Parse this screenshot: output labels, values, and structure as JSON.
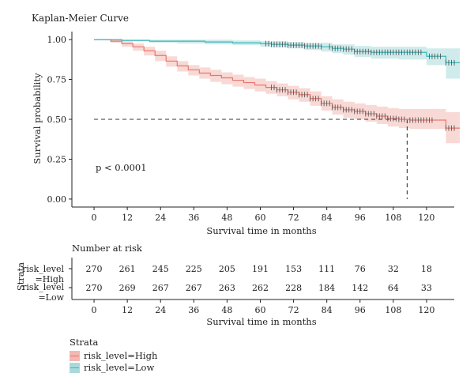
{
  "chart_data": [
    {
      "type": "line",
      "subtype": "kaplan-meier",
      "title": "Kaplan-Meier Curve",
      "xlabel": "Survival time in months",
      "ylabel": "Survival probability",
      "xlim": [
        -8,
        130
      ],
      "ylim": [
        -0.05,
        1.05
      ],
      "x_ticks": [
        0,
        12,
        24,
        36,
        48,
        60,
        72,
        84,
        96,
        108,
        120
      ],
      "y_ticks": [
        0.0,
        0.25,
        0.5,
        0.75,
        1.0
      ],
      "y_tick_labels": [
        "0.00",
        "0.25",
        "0.50",
        "0.75",
        "1.00"
      ],
      "annotation": "p < 0.0001",
      "median_line": {
        "y": 0.5,
        "x": 113
      },
      "grid": false,
      "series": [
        {
          "name": "risk_level=High",
          "color": "#E8776D",
          "ci_color": "#F2B9B2",
          "points": [
            [
              0,
              1.0
            ],
            [
              6,
              0.99
            ],
            [
              10,
              0.975
            ],
            [
              14,
              0.955
            ],
            [
              18,
              0.93
            ],
            [
              22,
              0.9
            ],
            [
              26,
              0.865
            ],
            [
              30,
              0.835
            ],
            [
              34,
              0.81
            ],
            [
              38,
              0.79
            ],
            [
              42,
              0.775
            ],
            [
              46,
              0.76
            ],
            [
              50,
              0.745
            ],
            [
              54,
              0.73
            ],
            [
              58,
              0.715
            ],
            [
              62,
              0.7
            ],
            [
              66,
              0.685
            ],
            [
              70,
              0.67
            ],
            [
              74,
              0.655
            ],
            [
              78,
              0.63
            ],
            [
              82,
              0.6
            ],
            [
              86,
              0.575
            ],
            [
              90,
              0.56
            ],
            [
              94,
              0.55
            ],
            [
              98,
              0.535
            ],
            [
              102,
              0.52
            ],
            [
              106,
              0.505
            ],
            [
              110,
              0.5
            ],
            [
              114,
              0.495
            ],
            [
              118,
              0.495
            ],
            [
              122,
              0.495
            ],
            [
              127,
              0.445
            ],
            [
              132,
              0.445
            ]
          ],
          "ci_upper": [
            [
              0,
              1.0
            ],
            [
              6,
              1.0
            ],
            [
              10,
              0.99
            ],
            [
              14,
              0.975
            ],
            [
              18,
              0.955
            ],
            [
              22,
              0.93
            ],
            [
              26,
              0.895
            ],
            [
              30,
              0.865
            ],
            [
              34,
              0.84
            ],
            [
              38,
              0.825
            ],
            [
              42,
              0.81
            ],
            [
              46,
              0.795
            ],
            [
              50,
              0.78
            ],
            [
              54,
              0.765
            ],
            [
              58,
              0.755
            ],
            [
              62,
              0.74
            ],
            [
              66,
              0.725
            ],
            [
              70,
              0.71
            ],
            [
              74,
              0.695
            ],
            [
              78,
              0.675
            ],
            [
              82,
              0.645
            ],
            [
              86,
              0.625
            ],
            [
              90,
              0.61
            ],
            [
              94,
              0.6
            ],
            [
              98,
              0.59
            ],
            [
              102,
              0.58
            ],
            [
              106,
              0.57
            ],
            [
              110,
              0.565
            ],
            [
              114,
              0.565
            ],
            [
              118,
              0.565
            ],
            [
              122,
              0.565
            ],
            [
              127,
              0.545
            ],
            [
              132,
              0.545
            ]
          ],
          "ci_lower": [
            [
              0,
              1.0
            ],
            [
              6,
              0.98
            ],
            [
              10,
              0.955
            ],
            [
              14,
              0.93
            ],
            [
              18,
              0.9
            ],
            [
              22,
              0.865
            ],
            [
              26,
              0.83
            ],
            [
              30,
              0.8
            ],
            [
              34,
              0.775
            ],
            [
              38,
              0.755
            ],
            [
              42,
              0.735
            ],
            [
              46,
              0.72
            ],
            [
              50,
              0.705
            ],
            [
              54,
              0.69
            ],
            [
              58,
              0.675
            ],
            [
              62,
              0.66
            ],
            [
              66,
              0.645
            ],
            [
              70,
              0.625
            ],
            [
              74,
              0.61
            ],
            [
              78,
              0.585
            ],
            [
              82,
              0.555
            ],
            [
              86,
              0.53
            ],
            [
              90,
              0.51
            ],
            [
              94,
              0.5
            ],
            [
              98,
              0.485
            ],
            [
              102,
              0.47
            ],
            [
              106,
              0.455
            ],
            [
              110,
              0.445
            ],
            [
              114,
              0.44
            ],
            [
              118,
              0.44
            ],
            [
              122,
              0.44
            ],
            [
              127,
              0.35
            ],
            [
              132,
              0.35
            ]
          ],
          "censor_x": [
            64,
            65,
            66,
            67,
            68,
            69,
            70,
            71,
            72,
            73,
            74,
            75,
            76,
            77,
            78,
            79,
            80,
            81,
            82,
            83,
            84,
            85,
            86,
            87,
            88,
            89,
            90,
            91,
            92,
            93,
            94,
            95,
            96,
            97,
            98,
            99,
            100,
            101,
            102,
            103,
            104,
            105,
            106,
            107,
            108,
            109,
            110,
            111,
            112,
            114,
            115,
            116,
            117,
            118,
            119,
            120,
            121,
            122,
            127,
            128,
            129,
            130
          ]
        },
        {
          "name": "risk_level=Low",
          "color": "#3BB5B8",
          "ci_color": "#A9DADB",
          "points": [
            [
              0,
              1.0
            ],
            [
              10,
              0.995
            ],
            [
              20,
              0.99
            ],
            [
              30,
              0.99
            ],
            [
              40,
              0.985
            ],
            [
              50,
              0.98
            ],
            [
              60,
              0.975
            ],
            [
              64,
              0.97
            ],
            [
              70,
              0.965
            ],
            [
              76,
              0.96
            ],
            [
              82,
              0.955
            ],
            [
              86,
              0.945
            ],
            [
              90,
              0.94
            ],
            [
              94,
              0.925
            ],
            [
              100,
              0.92
            ],
            [
              110,
              0.92
            ],
            [
              118,
              0.92
            ],
            [
              120,
              0.895
            ],
            [
              126,
              0.895
            ],
            [
              127,
              0.855
            ],
            [
              132,
              0.855
            ]
          ],
          "ci_upper": [
            [
              0,
              1.0
            ],
            [
              10,
              1.0
            ],
            [
              20,
              1.0
            ],
            [
              30,
              1.0
            ],
            [
              40,
              1.0
            ],
            [
              50,
              0.995
            ],
            [
              60,
              0.99
            ],
            [
              64,
              0.99
            ],
            [
              70,
              0.985
            ],
            [
              76,
              0.98
            ],
            [
              82,
              0.98
            ],
            [
              86,
              0.97
            ],
            [
              90,
              0.97
            ],
            [
              94,
              0.96
            ],
            [
              100,
              0.955
            ],
            [
              110,
              0.955
            ],
            [
              118,
              0.955
            ],
            [
              120,
              0.945
            ],
            [
              126,
              0.945
            ],
            [
              127,
              0.945
            ],
            [
              132,
              0.945
            ]
          ],
          "ci_lower": [
            [
              0,
              1.0
            ],
            [
              10,
              0.99
            ],
            [
              20,
              0.98
            ],
            [
              30,
              0.975
            ],
            [
              40,
              0.97
            ],
            [
              50,
              0.965
            ],
            [
              60,
              0.955
            ],
            [
              64,
              0.95
            ],
            [
              70,
              0.945
            ],
            [
              76,
              0.935
            ],
            [
              82,
              0.925
            ],
            [
              86,
              0.915
            ],
            [
              90,
              0.905
            ],
            [
              94,
              0.89
            ],
            [
              100,
              0.88
            ],
            [
              110,
              0.875
            ],
            [
              118,
              0.875
            ],
            [
              120,
              0.84
            ],
            [
              126,
              0.84
            ],
            [
              127,
              0.755
            ],
            [
              132,
              0.755
            ]
          ],
          "censor_x": [
            62,
            63,
            64,
            65,
            66,
            67,
            68,
            69,
            70,
            71,
            72,
            73,
            74,
            75,
            76,
            77,
            78,
            79,
            80,
            81,
            82,
            85,
            86,
            87,
            88,
            89,
            90,
            91,
            92,
            93,
            94,
            95,
            96,
            97,
            98,
            99,
            100,
            101,
            102,
            103,
            104,
            105,
            106,
            107,
            108,
            109,
            110,
            111,
            112,
            113,
            114,
            115,
            116,
            117,
            118,
            121,
            122,
            123,
            124,
            125,
            127,
            128,
            129,
            130
          ]
        }
      ]
    },
    {
      "type": "table",
      "title": "Number at risk",
      "ylabel": "Strata",
      "xlabel": "Survival time in months",
      "x_ticks": [
        0,
        12,
        24,
        36,
        48,
        60,
        72,
        84,
        96,
        108,
        120
      ],
      "rows": [
        {
          "label": [
            "risk_level",
            "=High"
          ],
          "values": [
            270,
            261,
            245,
            225,
            205,
            191,
            153,
            111,
            76,
            32,
            18
          ]
        },
        {
          "label": [
            "risk_level",
            "=Low"
          ],
          "values": [
            270,
            269,
            267,
            267,
            263,
            262,
            228,
            184,
            142,
            64,
            33
          ]
        }
      ]
    }
  ],
  "legend": {
    "title": "Strata",
    "items": [
      {
        "label": "risk_level=High",
        "color": "#E8776D",
        "fill": "#F2B9B2"
      },
      {
        "label": "risk_level=Low",
        "color": "#3BB5B8",
        "fill": "#A9DADB"
      }
    ]
  }
}
